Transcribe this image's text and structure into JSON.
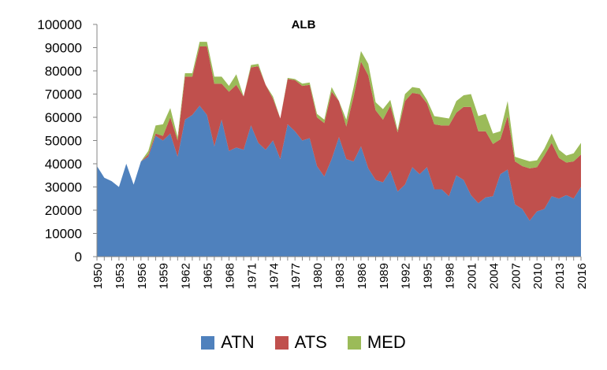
{
  "chart_data": {
    "type": "area",
    "stacked": true,
    "title": "ALB",
    "xlabel": "",
    "ylabel": "",
    "ylim": [
      0,
      100000
    ],
    "yticks": [
      0,
      10000,
      20000,
      30000,
      40000,
      50000,
      60000,
      70000,
      80000,
      90000,
      100000
    ],
    "yticks_labels": [
      "0",
      "10000",
      "20000",
      "30000",
      "40000",
      "50000",
      "60000",
      "70000",
      "80000",
      "90000",
      "100000"
    ],
    "xlim": [
      1950,
      2016
    ],
    "xticks": [
      1950,
      1953,
      1956,
      1959,
      1962,
      1965,
      1968,
      1971,
      1974,
      1977,
      1980,
      1983,
      1986,
      1989,
      1992,
      1995,
      1998,
      2001,
      2004,
      2007,
      2010,
      2013,
      2016
    ],
    "xticks_labels": [
      "1950",
      "1953",
      "1956",
      "1959",
      "1962",
      "1965",
      "1968",
      "1971",
      "1974",
      "1977",
      "1980",
      "1983",
      "1986",
      "1989",
      "1992",
      "1995",
      "1998",
      "2001",
      "2004",
      "2007",
      "2010",
      "2013",
      "2016"
    ],
    "grid": false,
    "legend_position": "bottom",
    "x": [
      1950,
      1951,
      1952,
      1953,
      1954,
      1955,
      1956,
      1957,
      1958,
      1959,
      1960,
      1961,
      1962,
      1963,
      1964,
      1965,
      1966,
      1967,
      1968,
      1969,
      1970,
      1971,
      1972,
      1973,
      1974,
      1975,
      1976,
      1977,
      1978,
      1979,
      1980,
      1981,
      1982,
      1983,
      1984,
      1985,
      1986,
      1987,
      1988,
      1989,
      1990,
      1991,
      1992,
      1993,
      1994,
      1995,
      1996,
      1997,
      1998,
      1999,
      2000,
      2001,
      2002,
      2003,
      2004,
      2005,
      2006,
      2007,
      2008,
      2009,
      2010,
      2011,
      2012,
      2013,
      2014,
      2015,
      2016
    ],
    "series": [
      {
        "name": "ATN",
        "color": "#4f81bd",
        "values": [
          39000,
          34000,
          32500,
          30000,
          40000,
          31000,
          41000,
          43000,
          52000,
          50000,
          53000,
          43000,
          59000,
          61000,
          65000,
          61000,
          47500,
          59000,
          45500,
          47000,
          46000,
          56500,
          49000,
          46000,
          50000,
          42000,
          57000,
          54000,
          50000,
          51000,
          39000,
          34500,
          42000,
          51500,
          42000,
          41000,
          47500,
          38000,
          33000,
          32000,
          37000,
          28000,
          31000,
          38500,
          35500,
          38500,
          29000,
          29000,
          26000,
          35000,
          33000,
          26500,
          23000,
          25500,
          26000,
          35500,
          37500,
          22500,
          20500,
          15500,
          19500,
          20500,
          26000,
          25000,
          26500,
          25000,
          30000
        ]
      },
      {
        "name": "ATS",
        "color": "#c0504d",
        "values": [
          0,
          0,
          0,
          0,
          0,
          0,
          0,
          1000,
          1000,
          2000,
          7000,
          7000,
          18500,
          16500,
          25500,
          29500,
          27000,
          15500,
          25500,
          27000,
          23000,
          25000,
          33000,
          28000,
          18000,
          17500,
          19500,
          22000,
          23500,
          23000,
          21000,
          23000,
          29000,
          15500,
          14000,
          28000,
          36500,
          40000,
          30000,
          27000,
          28000,
          25500,
          36000,
          32000,
          34500,
          27500,
          28000,
          27500,
          30500,
          27000,
          31500,
          38000,
          31000,
          28500,
          22500,
          15000,
          23000,
          18500,
          18500,
          22500,
          19000,
          23000,
          23000,
          17500,
          14000,
          16000,
          14000
        ]
      },
      {
        "name": "MED",
        "color": "#9bbb59",
        "values": [
          0,
          0,
          0,
          0,
          0,
          0,
          0,
          1500,
          3500,
          5000,
          4000,
          1500,
          1500,
          1500,
          2000,
          2000,
          3000,
          3000,
          2500,
          4500,
          0,
          1000,
          1000,
          0,
          1000,
          0,
          500,
          500,
          1000,
          1000,
          1500,
          1500,
          2000,
          0,
          3000,
          4000,
          4500,
          5000,
          3500,
          4500,
          2500,
          1000,
          3000,
          2500,
          2500,
          1500,
          3500,
          3500,
          3000,
          5000,
          5000,
          5500,
          6500,
          7500,
          4500,
          3500,
          6500,
          2000,
          3000,
          3000,
          3000,
          3000,
          4000,
          3500,
          3000,
          3500,
          5000
        ]
      }
    ]
  }
}
